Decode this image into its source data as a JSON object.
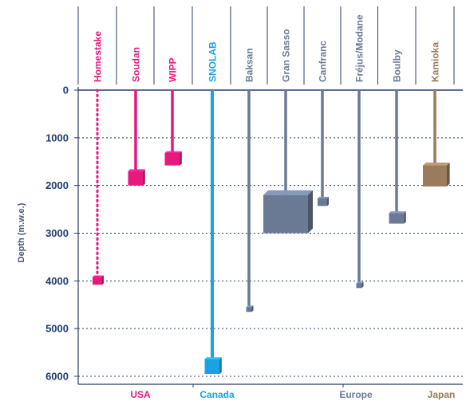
{
  "chart_data": {
    "type": "depth-profile",
    "ylabel": "Depth (m.w.e.)",
    "ylim": [
      0,
      6000
    ],
    "yticks": [
      0,
      1000,
      2000,
      3000,
      4000,
      5000,
      6000
    ],
    "grid": true,
    "labs": [
      {
        "name": "Homestake",
        "depth": 4000,
        "region": "USA",
        "color": "#e6197f",
        "line_style": "dotted",
        "box_depth_range": [
          3920,
          4080
        ],
        "box_size": "small"
      },
      {
        "name": "Soudan",
        "depth": 1850,
        "region": "USA",
        "color": "#e6197f",
        "line_style": "solid",
        "box_depth_range": [
          1700,
          2000
        ],
        "box_size": "medium"
      },
      {
        "name": "WIPP",
        "depth": 1450,
        "region": "USA",
        "color": "#e6197f",
        "line_style": "solid",
        "box_depth_range": [
          1320,
          1580
        ],
        "box_size": "medium"
      },
      {
        "name": "SNOLAB",
        "depth": 5800,
        "region": "Canada",
        "color": "#1aa3e0",
        "line_style": "solid",
        "box_depth_range": [
          5640,
          5950
        ],
        "box_size": "medium"
      },
      {
        "name": "Baksan",
        "depth": 4600,
        "region": "Europe",
        "color": "#6b7a94",
        "line_style": "solid",
        "box_depth_range": [
          4550,
          4650
        ],
        "box_size": "tiny"
      },
      {
        "name": "Gran Sasso",
        "depth": 2550,
        "region": "Europe",
        "color": "#6b7a94",
        "line_style": "solid",
        "box_depth_range": [
          2200,
          3000
        ],
        "box_size": "large"
      },
      {
        "name": "Canfranc",
        "depth": 2350,
        "region": "Europe",
        "color": "#6b7a94",
        "line_style": "solid",
        "box_depth_range": [
          2270,
          2430
        ],
        "box_size": "small"
      },
      {
        "name": "Fréjus/Modane",
        "depth": 4100,
        "region": "Europe",
        "color": "#6b7a94",
        "line_style": "solid",
        "box_depth_range": [
          4050,
          4150
        ],
        "box_size": "tiny"
      },
      {
        "name": "Boulby",
        "depth": 2700,
        "region": "Europe",
        "color": "#6b7a94",
        "line_style": "solid",
        "box_depth_range": [
          2580,
          2800
        ],
        "box_size": "medium"
      },
      {
        "name": "Kamioka",
        "depth": 1800,
        "region": "Japan",
        "color": "#9a7b5c",
        "line_style": "solid",
        "box_depth_range": [
          1580,
          2020
        ],
        "box_size": "large"
      }
    ],
    "regions": [
      {
        "name": "USA",
        "color": "#e6197f"
      },
      {
        "name": "Canada",
        "color": "#1aa3e0"
      },
      {
        "name": "Europe",
        "color": "#6b7a94"
      },
      {
        "name": "Japan",
        "color": "#9a7b5c"
      }
    ]
  }
}
